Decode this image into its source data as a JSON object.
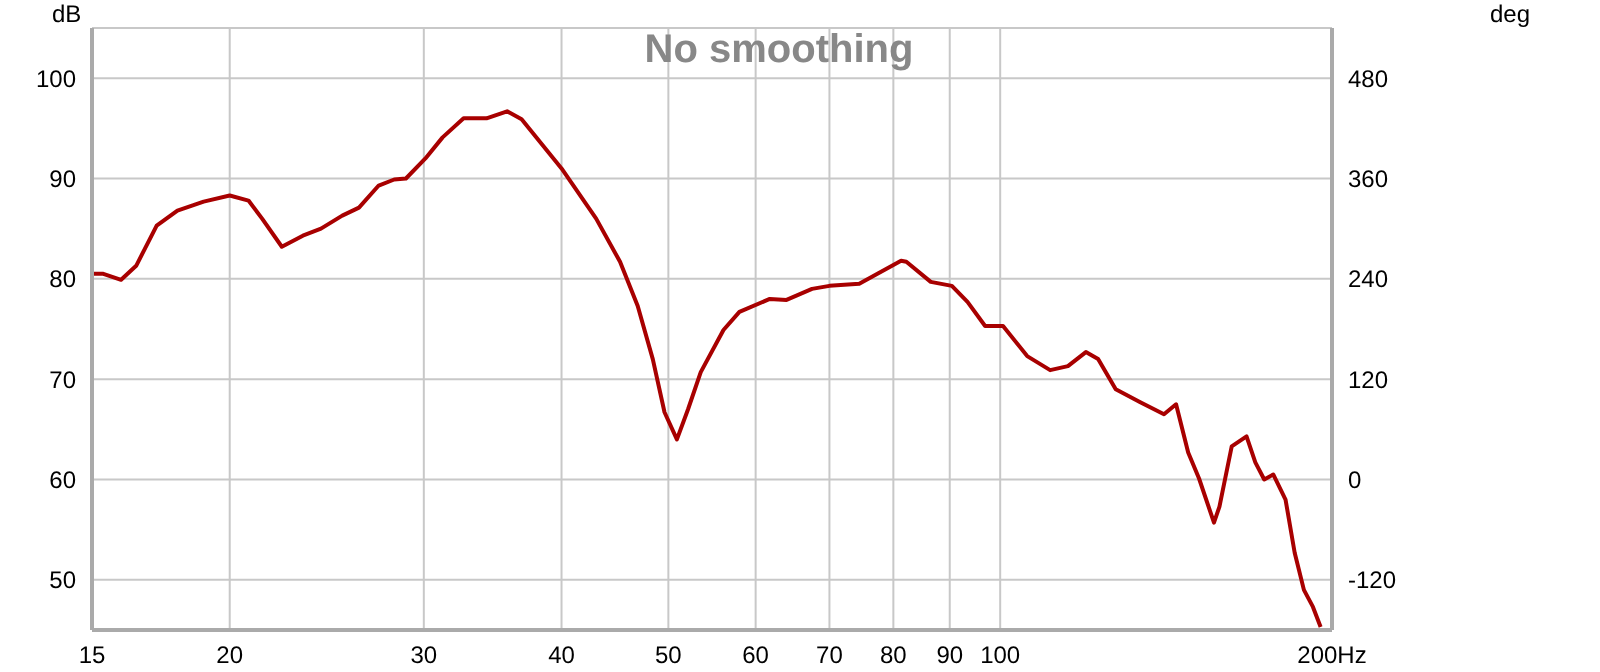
{
  "chart_data": {
    "type": "line",
    "title": "No smoothing",
    "ylabel": "dB",
    "y2label": "deg",
    "x": [
      15,
      15.36,
      15.94,
      16.45,
      17.17,
      17.93,
      18.94,
      20.0,
      20.8,
      21.4,
      22.3,
      23.3,
      24.2,
      25.3,
      26.2,
      27.3,
      28.2,
      28.9,
      30.1,
      31.2,
      32.6,
      34.2,
      35.7,
      36.8,
      40.0,
      43.0,
      45.2,
      46.9,
      48.4,
      49.6,
      50.9,
      52.1,
      53.5,
      56.1,
      58.0,
      61.8,
      64.0,
      67.5,
      70.0,
      74.5,
      81.3,
      82.2,
      86.5,
      90.4,
      93.4,
      96.9,
      100.6,
      105.8,
      111.0,
      115.2,
      119.6,
      122.7,
      127.3,
      134.0,
      140.8,
      144.4,
      148.1,
      151.5,
      156.3,
      158.1,
      162.2,
      167.3,
      170.4,
      173.6,
      176.9,
      181.5,
      185.0,
      188.6,
      192.2,
      195.3
    ],
    "series": [
      {
        "color": "#a80000",
        "values": [
          80.5,
          80.5,
          79.9,
          81.3,
          85.3,
          86.8,
          87.7,
          88.3,
          87.8,
          86.0,
          83.2,
          84.3,
          85.0,
          86.3,
          87.1,
          89.3,
          89.9,
          90.0,
          92.0,
          94.1,
          96.0,
          96.0,
          96.7,
          95.9,
          91.0,
          86.0,
          81.7,
          77.3,
          72.0,
          66.7,
          64.0,
          67.0,
          70.7,
          74.9,
          76.7,
          78.0,
          77.9,
          79.0,
          79.3,
          79.5,
          81.8,
          81.7,
          79.7,
          79.3,
          77.7,
          75.3,
          75.3,
          72.3,
          70.9,
          71.3,
          72.7,
          72.0,
          69.0,
          67.7,
          66.5,
          67.5,
          62.7,
          60.1,
          55.7,
          57.3,
          63.3,
          64.3,
          61.7,
          60.0,
          60.5,
          58.0,
          52.7,
          49.0,
          47.3,
          45.3
        ]
      }
    ],
    "log": "x",
    "xlim": [
      15,
      200
    ],
    "xticks": [
      15,
      20,
      30,
      40,
      50,
      60,
      70,
      80,
      90,
      100,
      {
        "value": 200,
        "label": "200Hz"
      }
    ],
    "ylim": [
      45,
      105
    ],
    "yticks": [
      50,
      60,
      70,
      80,
      90,
      100
    ],
    "y2lim": [
      -180,
      540
    ],
    "y2ticks": [
      -120,
      0,
      120,
      240,
      360,
      480
    ],
    "grid": true,
    "marker": "none",
    "line_style": "solid"
  }
}
